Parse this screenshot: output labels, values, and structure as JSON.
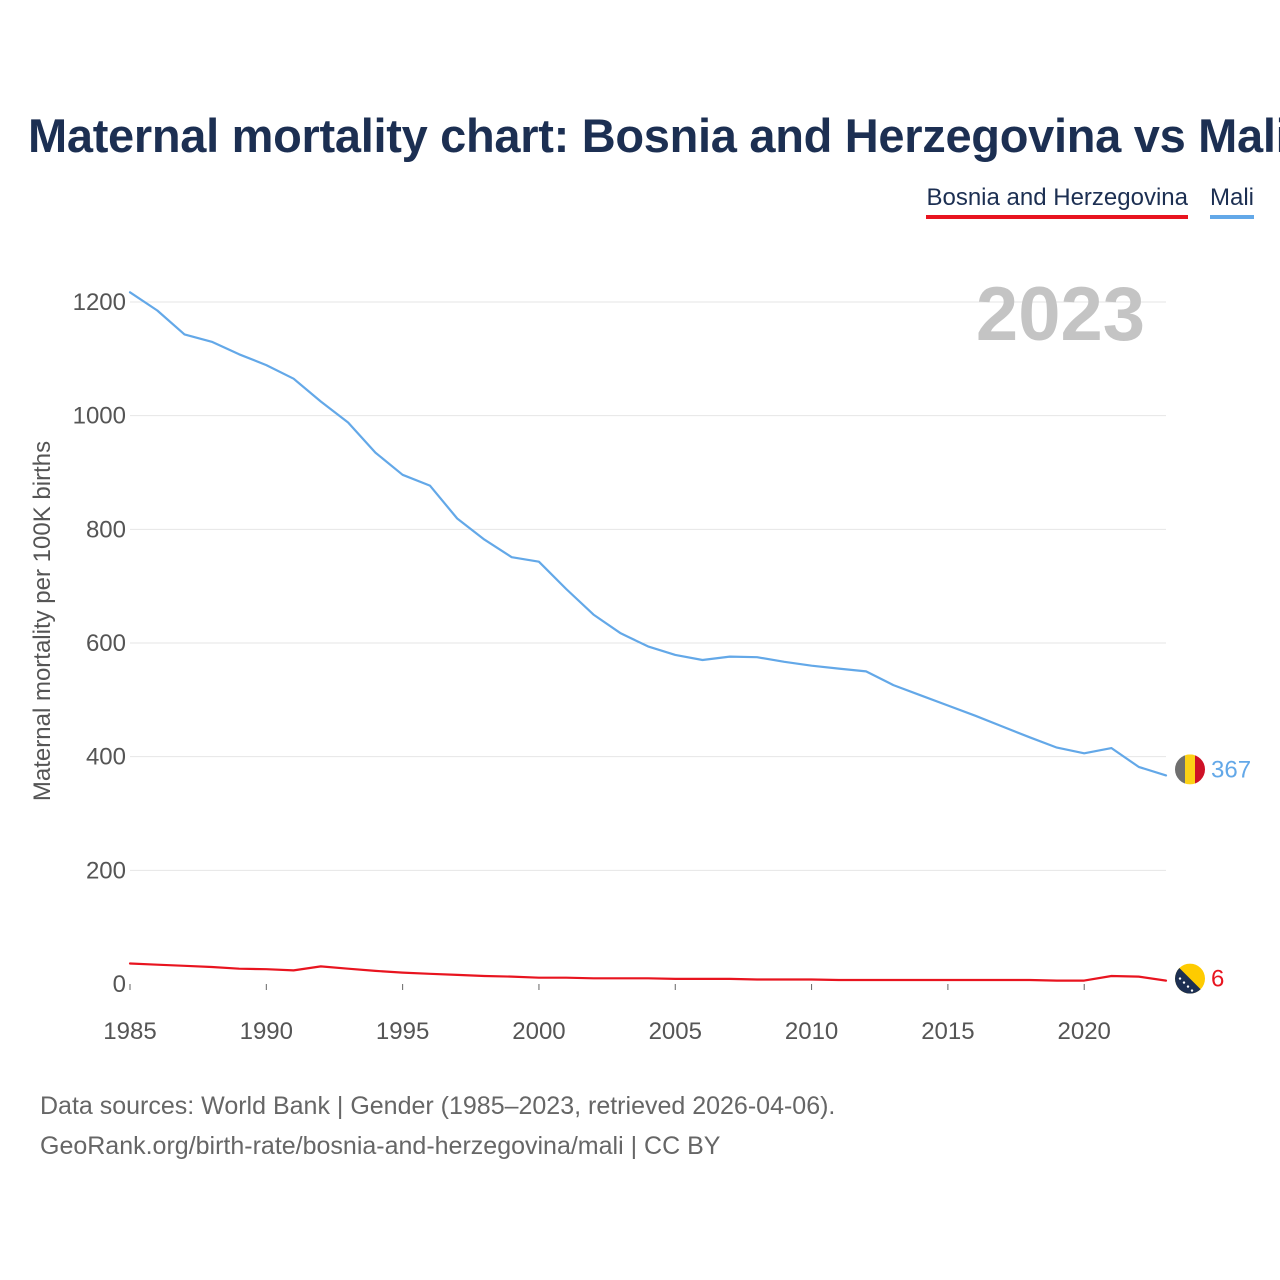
{
  "title": "Maternal mortality chart: Bosnia and Herzegovina vs Mali",
  "legend": [
    {
      "name": "Bosnia and Herzegovina",
      "color": "#e8141f"
    },
    {
      "name": "Mali",
      "color": "#63a8e8"
    }
  ],
  "footer": {
    "line1": "Data sources: World Bank | Gender (1985–2023, retrieved 2026-04-06).",
    "line2": "GeoRank.org/birth-rate/bosnia-and-herzegovina/mali | CC BY"
  },
  "chart_data": {
    "type": "line",
    "title": "Maternal mortality chart: Bosnia and Herzegovina vs Mali",
    "ylabel": "Maternal mortality per 100K births",
    "xlabel": "",
    "xlim": [
      1985,
      2023
    ],
    "ylim": [
      0,
      1200
    ],
    "xticks": [
      1985,
      1990,
      1995,
      2000,
      2005,
      2010,
      2015,
      2020
    ],
    "yticks": [
      0,
      200,
      400,
      600,
      800,
      1000,
      1200
    ],
    "grid": true,
    "year_watermark": "2023",
    "x": [
      1985,
      1986,
      1987,
      1988,
      1989,
      1990,
      1991,
      1992,
      1993,
      1994,
      1995,
      1996,
      1997,
      1998,
      1999,
      2000,
      2001,
      2002,
      2003,
      2004,
      2005,
      2006,
      2007,
      2008,
      2009,
      2010,
      2011,
      2012,
      2013,
      2014,
      2015,
      2016,
      2017,
      2018,
      2019,
      2020,
      2021,
      2022,
      2023
    ],
    "series": [
      {
        "name": "Mali",
        "color": "#63a8e8",
        "end_label": "367",
        "values": [
          1217,
          1185,
          1143,
          1130,
          1108,
          1089,
          1065,
          1025,
          988,
          935,
          896,
          877,
          819,
          782,
          751,
          743,
          695,
          650,
          617,
          594,
          579,
          570,
          576,
          575,
          567,
          560,
          555,
          550,
          526,
          508,
          490,
          472,
          453,
          434,
          416,
          406,
          415,
          382,
          367
        ]
      },
      {
        "name": "Bosnia and Herzegovina",
        "color": "#e8141f",
        "end_label": "6",
        "values": [
          36,
          34,
          32,
          30,
          27,
          26,
          24,
          31,
          27,
          23,
          20,
          18,
          16,
          14,
          13,
          11,
          11,
          10,
          10,
          10,
          9,
          9,
          9,
          8,
          8,
          8,
          7,
          7,
          7,
          7,
          7,
          7,
          7,
          7,
          6,
          6,
          14,
          13,
          6
        ]
      }
    ]
  }
}
